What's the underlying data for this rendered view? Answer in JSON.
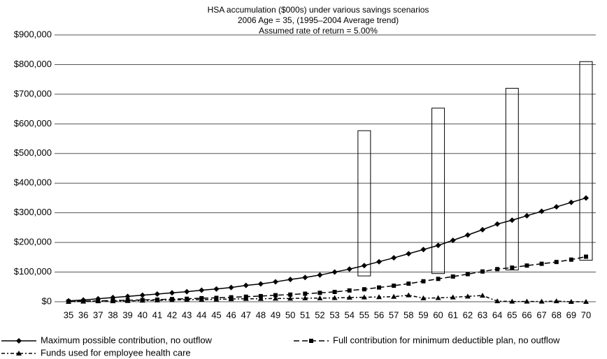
{
  "chart_data": {
    "type": "line",
    "title": [
      "HSA accumulation ($000s) under various savings scenarios",
      "2006 Age = 35, (1995–2004 Average trend)",
      "Assumed rate of return = 5.00%"
    ],
    "categories": [
      35,
      36,
      37,
      38,
      39,
      40,
      41,
      42,
      43,
      44,
      45,
      46,
      47,
      48,
      49,
      50,
      51,
      52,
      53,
      54,
      55,
      56,
      57,
      58,
      59,
      60,
      61,
      62,
      63,
      64,
      65,
      66,
      67,
      68,
      69,
      70
    ],
    "series": [
      {
        "name": "Maximum possible contribution, no outflow",
        "color": "#000000",
        "line_style": "solid",
        "marker": "diamond",
        "values": [
          3000,
          6000,
          10000,
          14000,
          18000,
          22000,
          26000,
          30000,
          34000,
          39000,
          43000,
          48000,
          55000,
          60000,
          67000,
          75000,
          82000,
          90000,
          100000,
          110000,
          122000,
          135000,
          148000,
          162000,
          176000,
          190000,
          207000,
          225000,
          243000,
          262000,
          275000,
          290000,
          305000,
          320000,
          335000,
          350000
        ]
      },
      {
        "name": "Full contribution for minimum deductible plan, no outflow",
        "color": "#000000",
        "line_style": "dashed",
        "marker": "square",
        "values": [
          1000,
          2000,
          3000,
          4000,
          5000,
          6000,
          7000,
          9000,
          10000,
          12000,
          13000,
          15000,
          17000,
          19000,
          22000,
          24000,
          27000,
          30000,
          33000,
          38000,
          42000,
          48000,
          54000,
          61000,
          69000,
          77000,
          85000,
          93000,
          102000,
          110000,
          115000,
          122000,
          128000,
          134000,
          142000,
          152000
        ]
      },
      {
        "name": "Funds used for employee health care",
        "color": "#000000",
        "line_style": "dash-dot",
        "marker": "triangle",
        "values": [
          0,
          1000,
          2000,
          2000,
          3000,
          4000,
          5000,
          6000,
          7000,
          7000,
          8000,
          9000,
          10000,
          10000,
          11000,
          11000,
          12000,
          12000,
          13000,
          14000,
          15000,
          16000,
          17000,
          22000,
          12000,
          13000,
          15000,
          18000,
          21000,
          2000,
          1000,
          1000,
          1000,
          2000,
          0,
          0
        ]
      }
    ],
    "ranges": [
      {
        "category": 55,
        "low": 87000,
        "high": 577000
      },
      {
        "category": 60,
        "low": 95000,
        "high": 653000
      },
      {
        "category": 65,
        "low": 107000,
        "high": 720000
      },
      {
        "category": 70,
        "low": 140000,
        "high": 810000
      }
    ],
    "ylim": [
      0,
      900000
    ],
    "yticks": [
      {
        "value": 0,
        "label": "$0"
      },
      {
        "value": 100000,
        "label": "$100,000"
      },
      {
        "value": 200000,
        "label": "$200,000"
      },
      {
        "value": 300000,
        "label": "$300,000"
      },
      {
        "value": 400000,
        "label": "$400,000"
      },
      {
        "value": 500000,
        "label": "$500,000"
      },
      {
        "value": 600000,
        "label": "$600,000"
      },
      {
        "value": 700000,
        "label": "$700,000"
      },
      {
        "value": 800000,
        "label": "$800,000"
      },
      {
        "value": 900000,
        "label": "$900,000"
      }
    ],
    "grid": true,
    "legend": "bottom"
  }
}
